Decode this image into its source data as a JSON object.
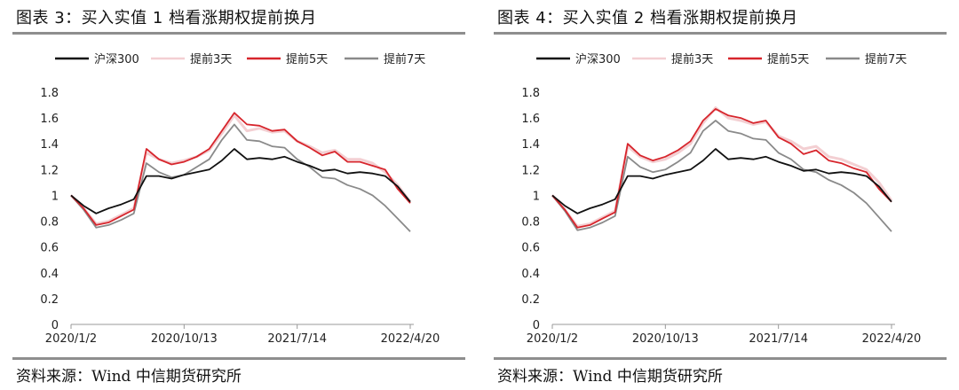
{
  "panels": [
    {
      "title": "图表  3：买入实值 1 档看涨期权提前换月",
      "source": "资料来源：Wind  中信期货研究所"
    },
    {
      "title": "图表  4：买入实值 2 档看涨期权提前换月",
      "source": "资料来源：Wind  中信期货研究所"
    }
  ],
  "chart_data": [
    {
      "type": "line",
      "title": "",
      "xlabel": "",
      "ylabel": "",
      "ylim": [
        0,
        1.8
      ],
      "yticks": [
        "0",
        "0.2",
        "0.4",
        "0.6",
        "0.8",
        "1",
        "1.2",
        "1.4",
        "1.6",
        "1.8"
      ],
      "xticks": [
        "2020/1/2",
        "2020/10/13",
        "2021/7/14",
        "2022/4/20"
      ],
      "grid": false,
      "legend": "top",
      "colors": {
        "沪深300": "#111111",
        "提前3天": "#f3cfd2",
        "提前5天": "#d7252c",
        "提前7天": "#8a8a8a"
      },
      "x": [
        "2020/1/2",
        "2020/2/3",
        "2020/3/2",
        "2020/4/1",
        "2020/5/6",
        "2020/6/5",
        "2020/7/3",
        "2020/8/3",
        "2020/9/1",
        "2020/10/13",
        "2020/11/12",
        "2020/12/11",
        "2021/1/11",
        "2021/2/18",
        "2021/3/19",
        "2021/4/19",
        "2021/5/20",
        "2021/6/18",
        "2021/7/14",
        "2021/8/13",
        "2021/9/13",
        "2021/10/19",
        "2021/11/17",
        "2021/12/16",
        "2022/1/17",
        "2022/2/23",
        "2022/3/23",
        "2022/4/20"
      ],
      "series": [
        {
          "name": "沪深300",
          "values": [
            1.0,
            0.92,
            0.86,
            0.9,
            0.93,
            0.97,
            1.15,
            1.15,
            1.13,
            1.16,
            1.18,
            1.2,
            1.27,
            1.36,
            1.28,
            1.29,
            1.28,
            1.3,
            1.26,
            1.23,
            1.19,
            1.2,
            1.17,
            1.18,
            1.17,
            1.15,
            1.07,
            0.95
          ]
        },
        {
          "name": "提前3天",
          "values": [
            1.0,
            0.9,
            0.78,
            0.8,
            0.85,
            0.9,
            1.33,
            1.28,
            1.25,
            1.27,
            1.3,
            1.35,
            1.48,
            1.62,
            1.5,
            1.52,
            1.49,
            1.5,
            1.42,
            1.38,
            1.33,
            1.35,
            1.28,
            1.28,
            1.25,
            1.18,
            1.08,
            0.95
          ]
        },
        {
          "name": "提前5天",
          "values": [
            1.0,
            0.9,
            0.77,
            0.79,
            0.84,
            0.89,
            1.36,
            1.28,
            1.24,
            1.26,
            1.3,
            1.36,
            1.5,
            1.64,
            1.55,
            1.54,
            1.5,
            1.51,
            1.42,
            1.37,
            1.31,
            1.34,
            1.26,
            1.26,
            1.23,
            1.2,
            1.05,
            0.94
          ]
        },
        {
          "name": "提前7天",
          "values": [
            1.0,
            0.89,
            0.75,
            0.77,
            0.81,
            0.86,
            1.25,
            1.18,
            1.14,
            1.16,
            1.22,
            1.28,
            1.43,
            1.55,
            1.43,
            1.42,
            1.38,
            1.37,
            1.28,
            1.22,
            1.14,
            1.13,
            1.08,
            1.05,
            1.0,
            0.92,
            0.82,
            0.72
          ]
        }
      ]
    },
    {
      "type": "line",
      "title": "",
      "xlabel": "",
      "ylabel": "",
      "ylim": [
        0,
        1.8
      ],
      "yticks": [
        "0",
        "0.2",
        "0.4",
        "0.6",
        "0.8",
        "1",
        "1.2",
        "1.4",
        "1.6",
        "1.8"
      ],
      "xticks": [
        "2020/1/2",
        "2020/10/13",
        "2021/7/14",
        "2022/4/20"
      ],
      "grid": false,
      "legend": "top",
      "colors": {
        "沪深300": "#111111",
        "提前3天": "#f3cfd2",
        "提前5天": "#d7252c",
        "提前7天": "#8a8a8a"
      },
      "x": [
        "2020/1/2",
        "2020/2/3",
        "2020/3/2",
        "2020/4/1",
        "2020/5/6",
        "2020/6/5",
        "2020/7/3",
        "2020/8/3",
        "2020/9/1",
        "2020/10/13",
        "2020/11/12",
        "2020/12/11",
        "2021/1/11",
        "2021/2/18",
        "2021/3/19",
        "2021/4/19",
        "2021/5/20",
        "2021/6/18",
        "2021/7/14",
        "2021/8/13",
        "2021/9/13",
        "2021/10/19",
        "2021/11/17",
        "2021/12/16",
        "2022/1/17",
        "2022/2/23",
        "2022/3/23",
        "2022/4/20"
      ],
      "series": [
        {
          "name": "沪深300",
          "values": [
            1.0,
            0.92,
            0.86,
            0.9,
            0.93,
            0.97,
            1.15,
            1.15,
            1.13,
            1.16,
            1.18,
            1.2,
            1.27,
            1.36,
            1.28,
            1.29,
            1.28,
            1.3,
            1.26,
            1.23,
            1.19,
            1.2,
            1.17,
            1.18,
            1.17,
            1.15,
            1.07,
            0.95
          ]
        },
        {
          "name": "提前3天",
          "values": [
            1.0,
            0.89,
            0.76,
            0.78,
            0.83,
            0.88,
            1.38,
            1.3,
            1.26,
            1.28,
            1.33,
            1.4,
            1.56,
            1.68,
            1.6,
            1.58,
            1.55,
            1.57,
            1.46,
            1.42,
            1.36,
            1.38,
            1.3,
            1.28,
            1.24,
            1.2,
            1.1,
            0.96
          ]
        },
        {
          "name": "提前5天",
          "values": [
            1.0,
            0.89,
            0.75,
            0.77,
            0.82,
            0.87,
            1.4,
            1.31,
            1.27,
            1.3,
            1.35,
            1.42,
            1.58,
            1.67,
            1.62,
            1.6,
            1.56,
            1.58,
            1.45,
            1.4,
            1.32,
            1.35,
            1.27,
            1.25,
            1.21,
            1.18,
            1.05,
            0.95
          ]
        },
        {
          "name": "提前7天",
          "values": [
            1.0,
            0.88,
            0.73,
            0.75,
            0.79,
            0.84,
            1.3,
            1.22,
            1.18,
            1.2,
            1.26,
            1.33,
            1.5,
            1.58,
            1.5,
            1.48,
            1.44,
            1.43,
            1.33,
            1.28,
            1.2,
            1.18,
            1.12,
            1.08,
            1.02,
            0.94,
            0.83,
            0.72
          ]
        }
      ]
    }
  ]
}
